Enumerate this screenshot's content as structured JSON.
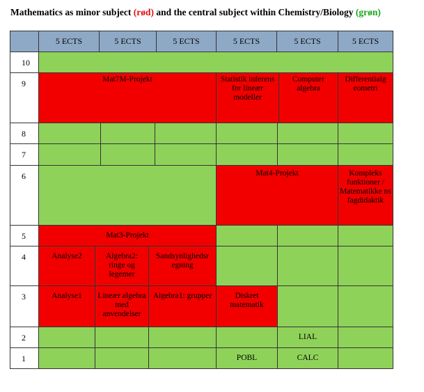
{
  "title": {
    "prefix": "Mathematics as minor subject ",
    "red_word": "(rød)",
    "middle": " and the central subject within Chemistry/Biology ",
    "green_word": "(grøn)"
  },
  "colors": {
    "red": "#f20000",
    "green": "#8fd25a",
    "header": "#8ea9c6"
  },
  "header": [
    "5 ECTS",
    "5 ECTS",
    "5 ECTS",
    "5 ECTS",
    "5 ECTS",
    "5 ECTS"
  ],
  "rows": [
    "10",
    "9",
    "8",
    "7",
    "6",
    "5",
    "4",
    "3",
    "2",
    "1"
  ],
  "cells": {
    "mat7m_projekt": "Mat7M-Projekt",
    "statistik": "Statistik inferens for lineær modeller",
    "computer_algebra": "Computer algebra",
    "differentialgeometri": "Differentialg eometri",
    "mat4_projekt": "Mat4-Projekt",
    "kompleks": "Kompleks funktioner / Matematikke ns fagdidaktik",
    "mat3_projekt": "Mat3-Projekt",
    "analyse2": "Analyse2",
    "algebra2": "Algebra2: ringe og legemer",
    "sandsynlighedsregning": "Sandsynlighedsr egning",
    "analyse1": "Analyse1",
    "lineaer_algebra": "Lineær algebra med anvendelser",
    "algebra1": "Algebra1: grupper",
    "diskret_matematik": "Diskret matematik",
    "lial": "LIAL",
    "pobl": "POBL",
    "calc": "CALC"
  }
}
